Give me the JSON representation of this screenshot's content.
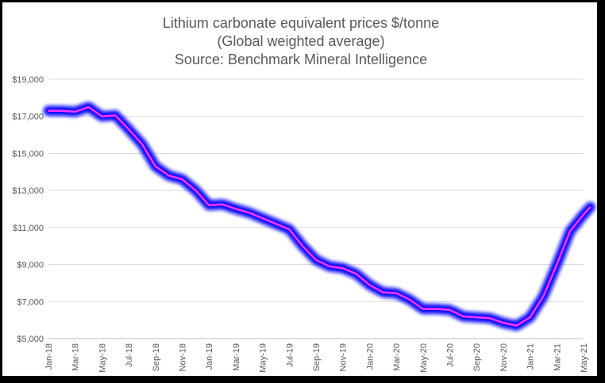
{
  "chart_data": {
    "type": "line",
    "title_lines": [
      "Lithium carbonate equivalent prices $/tonne",
      "(Global weighted average)",
      "Source: Benchmark Mineral Intelligence"
    ],
    "xlabel": "",
    "ylabel": "",
    "ylim": [
      5000,
      19000
    ],
    "yticks": [
      5000,
      7000,
      9000,
      11000,
      13000,
      15000,
      17000,
      19000
    ],
    "ytick_labels": [
      "$5,000",
      "$7,000",
      "$9,000",
      "$11,000",
      "$13,000",
      "$15,000",
      "$17,000",
      "$19,000"
    ],
    "grid": true,
    "legend": "none",
    "line_color": "#ff33ff",
    "glow_color": "#1010ff",
    "x_categories": [
      "Jan-18",
      "Feb-18",
      "Mar-18",
      "Apr-18",
      "May-18",
      "Jun-18",
      "Jul-18",
      "Aug-18",
      "Sep-18",
      "Oct-18",
      "Nov-18",
      "Dec-18",
      "Jan-19",
      "Feb-19",
      "Mar-19",
      "Apr-19",
      "May-19",
      "Jun-19",
      "Jul-19",
      "Aug-19",
      "Sep-19",
      "Oct-19",
      "Nov-19",
      "Dec-19",
      "Jan-20",
      "Feb-20",
      "Mar-20",
      "Apr-20",
      "May-20",
      "Jun-20",
      "Jul-20",
      "Aug-20",
      "Sep-20",
      "Oct-20",
      "Nov-20",
      "Dec-20",
      "Jan-21",
      "Feb-21",
      "Mar-21",
      "Apr-21",
      "May-21"
    ],
    "xtick_labels": [
      "Jan-18",
      "Mar-18",
      "May-18",
      "Jul-18",
      "Sep-18",
      "Nov-18",
      "Jan-19",
      "Mar-19",
      "May-19",
      "Jul-19",
      "Sep-19",
      "Nov-19",
      "Jan-20",
      "Mar-20",
      "May-20",
      "Jul-20",
      "Sep-20",
      "Nov-20",
      "Jan-21",
      "Mar-21",
      "May-21"
    ],
    "series": [
      {
        "name": "Lithium carbonate equivalent price",
        "x": [
          0,
          1,
          2,
          3,
          4,
          5,
          6,
          7,
          8,
          9,
          10,
          11,
          12,
          13,
          14,
          15,
          16,
          17,
          18,
          19,
          20,
          21,
          22,
          23,
          24,
          25,
          26,
          27,
          28,
          29,
          30,
          31,
          32,
          33,
          34,
          35,
          36,
          37,
          38,
          39,
          40,
          40.5
        ],
        "values": [
          17300,
          17300,
          17250,
          17500,
          17000,
          17050,
          16300,
          15500,
          14300,
          13800,
          13600,
          13000,
          12200,
          12250,
          12000,
          11800,
          11500,
          11200,
          10900,
          10000,
          9250,
          8900,
          8800,
          8500,
          7900,
          7500,
          7450,
          7100,
          6600,
          6600,
          6550,
          6200,
          6150,
          6100,
          5850,
          5700,
          6150,
          7300,
          9000,
          10800,
          11700,
          12100
        ]
      }
    ]
  }
}
